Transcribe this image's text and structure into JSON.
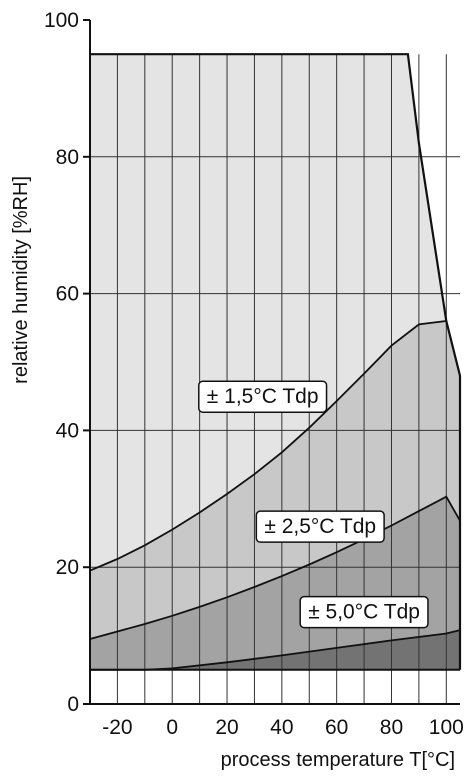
{
  "chart_data": {
    "type": "area",
    "xlabel": "process temperature T[°C]",
    "ylabel": "relative humidity  [%RH]",
    "xlim": [
      -30,
      105
    ],
    "ylim": [
      0,
      100
    ],
    "x_ticks": [
      -20,
      0,
      20,
      40,
      60,
      80,
      100
    ],
    "y_ticks": [
      0,
      20,
      40,
      60,
      80,
      100
    ],
    "grid": {
      "vertical": true,
      "vertical_step": 10,
      "horizontal": true
    },
    "colors": {
      "region_1_5": "#e4e4e4",
      "region_2_5": "#c8c8c8",
      "region_5_0": "#a3a3a3",
      "region_base": "#737373",
      "grid": "#333333",
      "outline": "#111111"
    },
    "series": [
      {
        "name": "",
        "label": "± 1,5°C Tdp",
        "role": "outer-boundary",
        "x": [
          -30,
          86,
          90,
          100,
          105,
          105
        ],
        "y": [
          95,
          95,
          82,
          56,
          48,
          5
        ]
      },
      {
        "name": "",
        "label": "± 2,5°C Tdp",
        "role": "curve",
        "x": [
          -30,
          -20,
          -10,
          0,
          10,
          20,
          30,
          40,
          50,
          60,
          70,
          80,
          90,
          100
        ],
        "y": [
          19.5,
          21.2,
          23.2,
          25.5,
          28.0,
          30.7,
          33.6,
          36.8,
          40.4,
          44.3,
          48.3,
          52.4,
          55.5,
          56
        ]
      },
      {
        "name": "",
        "label": "± 5,0°C Tdp",
        "role": "curve",
        "x": [
          -30,
          -20,
          -10,
          0,
          10,
          20,
          30,
          40,
          50,
          60,
          70,
          80,
          90,
          100,
          105
        ],
        "y": [
          9.5,
          10.6,
          11.7,
          12.9,
          14.2,
          15.6,
          17.1,
          18.7,
          20.4,
          22.2,
          24.1,
          26.1,
          28.2,
          30.3,
          26.8
        ]
      },
      {
        "name": "",
        "label": "",
        "role": "curve",
        "x": [
          -30,
          -10,
          0,
          20,
          40,
          60,
          80,
          100,
          105
        ],
        "y": [
          5,
          5,
          5.2,
          6.1,
          7.1,
          8.2,
          9.3,
          10.3,
          10.8
        ]
      }
    ],
    "annotations": [
      {
        "text": "± 1,5°C Tdp",
        "x": 33,
        "y": 45
      },
      {
        "text": "± 2,5°C Tdp",
        "x": 54,
        "y": 26
      },
      {
        "text": "± 5,0°C Tdp",
        "x": 70,
        "y": 13.5
      }
    ]
  }
}
